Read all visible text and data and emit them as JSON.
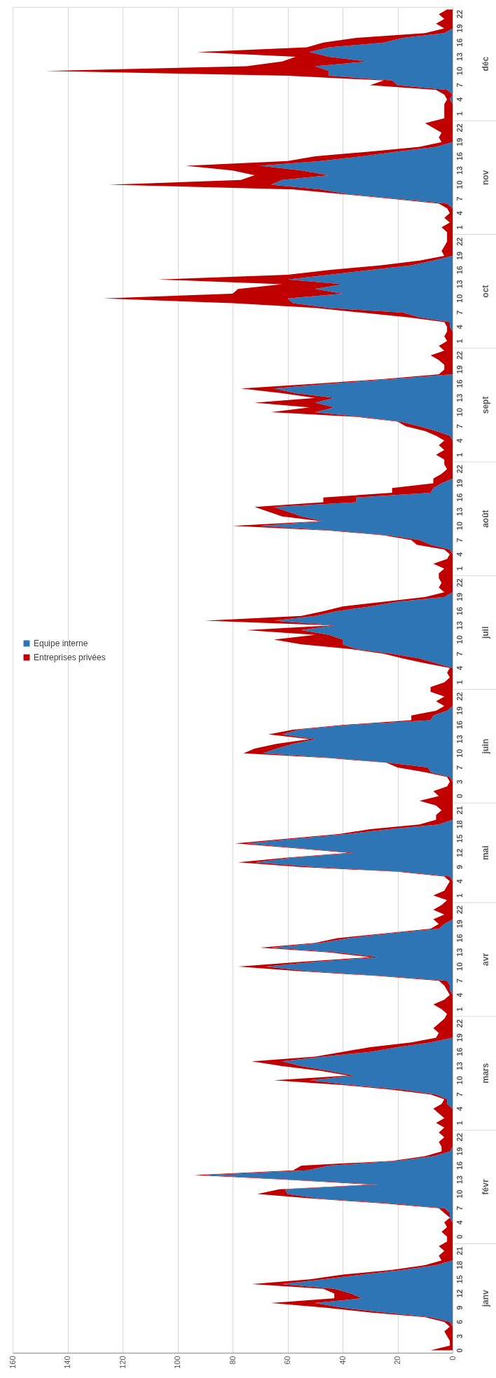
{
  "chart_data": {
    "type": "area",
    "stacked": true,
    "orientation": "horizontal",
    "categories": [
      null,
      "22",
      null,
      null,
      "19",
      null,
      null,
      "16",
      null,
      null,
      "13",
      null,
      null,
      "10",
      null,
      null,
      "7",
      null,
      null,
      "4",
      null,
      null,
      "1",
      null,
      null,
      "22",
      null,
      null,
      "19",
      null,
      null,
      "16",
      null,
      null,
      "13",
      null,
      null,
      "10",
      null,
      null,
      "7",
      null,
      null,
      "4",
      null,
      null,
      "1",
      null,
      null,
      "22",
      null,
      null,
      "19",
      null,
      null,
      "16",
      null,
      null,
      "13",
      null,
      null,
      "10",
      null,
      null,
      "7",
      null,
      null,
      "4",
      null,
      null,
      "1",
      null,
      null,
      "22",
      null,
      null,
      "19",
      null,
      null,
      "16",
      null,
      null,
      "13",
      null,
      null,
      "10",
      null,
      null,
      "7",
      null,
      null,
      "4",
      null,
      null,
      "1",
      null,
      null,
      "22",
      null,
      null,
      "19",
      null,
      null,
      "16",
      null,
      null,
      "13",
      null,
      null,
      "10",
      null,
      null,
      "7",
      null,
      null,
      "4",
      null,
      null,
      "1",
      null,
      null,
      "22",
      null,
      null,
      "19",
      null,
      null,
      "16",
      null,
      null,
      "13",
      null,
      null,
      "10",
      null,
      null,
      "7",
      null,
      null,
      "4",
      null,
      null,
      "1",
      null,
      null,
      "22",
      null,
      null,
      "19",
      null,
      null,
      "16",
      null,
      null,
      "13",
      null,
      null,
      "10",
      null,
      null,
      "7",
      null,
      null,
      "3",
      null,
      null,
      "0",
      null,
      null,
      "21",
      null,
      null,
      "18",
      null,
      null,
      "15",
      null,
      null,
      "12",
      null,
      null,
      "9",
      null,
      null,
      "4",
      null,
      null,
      "1",
      null,
      null,
      "22",
      null,
      null,
      "19",
      null,
      null,
      "16",
      null,
      null,
      "13",
      null,
      null,
      "10",
      null,
      null,
      "7",
      null,
      null,
      "4",
      null,
      null,
      "1",
      null,
      null,
      "22",
      null,
      null,
      "19",
      null,
      null,
      "16",
      null,
      null,
      "13",
      null,
      null,
      "10",
      null,
      null,
      "7",
      null,
      null,
      "4",
      null,
      null,
      "1",
      null,
      null,
      "22",
      null,
      null,
      "19",
      null,
      null,
      "16",
      null,
      null,
      "13",
      null,
      null,
      "10",
      null,
      null,
      "7",
      null,
      null,
      "4",
      null,
      null,
      "0",
      null,
      null,
      "21",
      null,
      null,
      "18",
      null,
      null,
      "15",
      null,
      null,
      "12",
      null,
      null,
      "9",
      null,
      null,
      "6",
      null,
      null,
      "3",
      null,
      null,
      "0"
    ],
    "series": [
      {
        "name": "Equipe interne",
        "color": "#2e75b6",
        "values": [
          0,
          0,
          0,
          0,
          0,
          3,
          18,
          25,
          45,
          52,
          45,
          31,
          50,
          45,
          45,
          22,
          20,
          2,
          0,
          1,
          0,
          0,
          0,
          0,
          0,
          0,
          0,
          0,
          0,
          6,
          20,
          33,
          48,
          70,
          55,
          45,
          62,
          66,
          48,
          38,
          20,
          2,
          0,
          0,
          0,
          0,
          0,
          0,
          0,
          0,
          0,
          0,
          0,
          7,
          15,
          30,
          45,
          60,
          40,
          50,
          40,
          60,
          58,
          45,
          18,
          12,
          1,
          1,
          0,
          0,
          0,
          0,
          0,
          0,
          0,
          0,
          0,
          0,
          22,
          45,
          65,
          57,
          43,
          50,
          43,
          50,
          33,
          19,
          12,
          6,
          1,
          0,
          0,
          0,
          0,
          0,
          0,
          0,
          0,
          0,
          4,
          7,
          8,
          35,
          35,
          65,
          60,
          55,
          47,
          70,
          43,
          23,
          12,
          8,
          1,
          0,
          0,
          0,
          0,
          0,
          0,
          0,
          0,
          0,
          3,
          20,
          30,
          42,
          50,
          65,
          43,
          55,
          45,
          40,
          40,
          35,
          22,
          12,
          6,
          0,
          0,
          0,
          0,
          0,
          0,
          0,
          0,
          0,
          2,
          7,
          8,
          38,
          56,
          62,
          50,
          58,
          64,
          69,
          43,
          23,
          9,
          8,
          1,
          0,
          0,
          0,
          0,
          0,
          0,
          0,
          0,
          0,
          5,
          23,
          38,
          57,
          75,
          56,
          36,
          58,
          72,
          50,
          18,
          1,
          0,
          0,
          0,
          0,
          0,
          0,
          0,
          0,
          0,
          3,
          5,
          23,
          38,
          48,
          66,
          42,
          27,
          50,
          68,
          52,
          25,
          2,
          1,
          1,
          0,
          0,
          0,
          0,
          0,
          0,
          0,
          0,
          0,
          0,
          8,
          20,
          30,
          47,
          62,
          55,
          45,
          36,
          52,
          37,
          18,
          6,
          2,
          2,
          0,
          0,
          0,
          0,
          0,
          0,
          0,
          0,
          0,
          1,
          7,
          20,
          45,
          53,
          90,
          58,
          27,
          61,
          60,
          48,
          22,
          3,
          1,
          1,
          0,
          0,
          0,
          0,
          0,
          0,
          0,
          0,
          0,
          6,
          18,
          33,
          47,
          62,
          43,
          37,
          33,
          50,
          40,
          25,
          8,
          1,
          0,
          0,
          0,
          0,
          0,
          0
        ]
      },
      {
        "name": "Entreprises privées",
        "color": "#c00000",
        "values": [
          2,
          5,
          3,
          6,
          3,
          7,
          17,
          22,
          8,
          41,
          12,
          31,
          25,
          103,
          15,
          3,
          10,
          4,
          3,
          1,
          3,
          3,
          3,
          3,
          10,
          7,
          4,
          5,
          4,
          6,
          10,
          17,
          12,
          27,
          25,
          27,
          15,
          59,
          10,
          2,
          2,
          3,
          2,
          1,
          3,
          1,
          4,
          2,
          2,
          2,
          3,
          4,
          3,
          5,
          11,
          15,
          15,
          47,
          22,
          28,
          40,
          67,
          22,
          5,
          15,
          4,
          2,
          1,
          2,
          3,
          2,
          5,
          3,
          8,
          5,
          3,
          3,
          5,
          3,
          5,
          12,
          5,
          7,
          22,
          9,
          16,
          2,
          1,
          5,
          4,
          5,
          3,
          5,
          3,
          6,
          3,
          3,
          2,
          4,
          7,
          3,
          15,
          14,
          12,
          12,
          7,
          7,
          7,
          1,
          10,
          2,
          2,
          3,
          5,
          2,
          1,
          2,
          7,
          3,
          5,
          5,
          4,
          5,
          3,
          7,
          5,
          10,
          5,
          5,
          25,
          1,
          20,
          5,
          25,
          15,
          2,
          3,
          6,
          4,
          1,
          2,
          1,
          3,
          8,
          8,
          3,
          6,
          3,
          4,
          8,
          7,
          2,
          2,
          5,
          2,
          6,
          8,
          7,
          2,
          1,
          11,
          2,
          1,
          1,
          2,
          7,
          5,
          12,
          6,
          4,
          6,
          6,
          7,
          7,
          3,
          3,
          4,
          2,
          2,
          2,
          6,
          5,
          2,
          2,
          1,
          2,
          3,
          7,
          2,
          4,
          7,
          3,
          7,
          2,
          3,
          2,
          4,
          2,
          4,
          3,
          3,
          5,
          10,
          3,
          2,
          3,
          2,
          1,
          1,
          3,
          7,
          4,
          2,
          3,
          5,
          7,
          5,
          6,
          7,
          10,
          10,
          3,
          11,
          7,
          3,
          2,
          13,
          3,
          4,
          2,
          1,
          2,
          7,
          5,
          3,
          6,
          3,
          5,
          3,
          5,
          4,
          3,
          3,
          2,
          10,
          5,
          4,
          2,
          3,
          2,
          11,
          2,
          3,
          2,
          2,
          0,
          3,
          2,
          4,
          2,
          2,
          5,
          3,
          5,
          4,
          4,
          4,
          7,
          5,
          11,
          4,
          6,
          10,
          16,
          6,
          5,
          2,
          2,
          1,
          3,
          2,
          1,
          1,
          8
        ]
      }
    ],
    "annotations": [
      "déc",
      "nov",
      "oct",
      "sept",
      "août",
      "juil",
      "juin",
      "mai",
      "avr",
      "mars",
      "févr",
      "janv"
    ],
    "xlim": [
      160,
      0
    ],
    "xticks": [
      160,
      140,
      120,
      100,
      80,
      60,
      40,
      20,
      0
    ],
    "grid": "x",
    "legend": "left"
  }
}
